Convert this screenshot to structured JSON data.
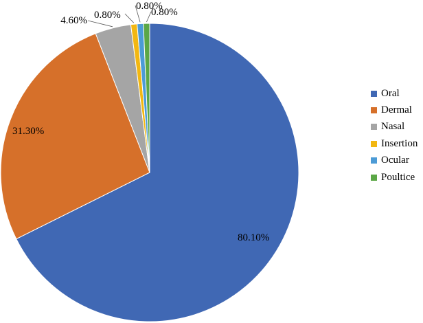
{
  "chart_data": {
    "type": "pie",
    "title": "",
    "start_angle_deg": 0,
    "direction": "clockwise",
    "legend_position": "right",
    "series": [
      {
        "name": "Oral",
        "value": 80.1,
        "label": "80.10%",
        "color": "#4068B4"
      },
      {
        "name": "Dermal",
        "value": 31.3,
        "label": "31.30%",
        "color": "#D6702A"
      },
      {
        "name": "Nasal",
        "value": 4.6,
        "label": "4.60%",
        "color": "#A5A5A5"
      },
      {
        "name": "Insertion",
        "value": 0.8,
        "label": "0.80%",
        "color": "#F2B712"
      },
      {
        "name": "Ocular",
        "value": 0.8,
        "label": "0.80%",
        "color": "#4C9BD6"
      },
      {
        "name": "Poultice",
        "value": 0.8,
        "label": "0.80%",
        "color": "#5BA746"
      }
    ]
  }
}
